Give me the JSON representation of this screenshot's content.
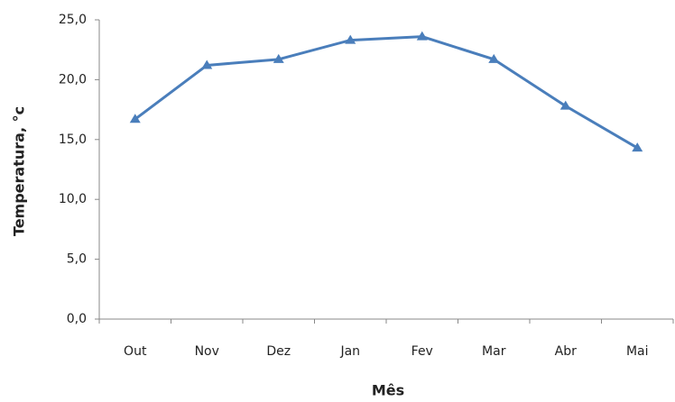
{
  "chart_data": {
    "type": "line",
    "x_label": "Mês",
    "y_label": "Temperatura, °c",
    "categories": [
      "Out",
      "Nov",
      "Dez",
      "Jan",
      "Fev",
      "Mar",
      "Abr",
      "Mai"
    ],
    "values": [
      16.7,
      21.2,
      21.7,
      23.3,
      23.6,
      21.7,
      17.8,
      14.3
    ],
    "color": "#4a7ebb",
    "ylim": [
      0,
      25
    ],
    "yticks": [
      {
        "value": 0,
        "label": "0,0"
      },
      {
        "value": 5,
        "label": "5,0"
      },
      {
        "value": 10,
        "label": "10,0"
      },
      {
        "value": 15,
        "label": "15,0"
      },
      {
        "value": 20,
        "label": "20,0"
      },
      {
        "value": 25,
        "label": "25,0"
      }
    ],
    "grid": false
  }
}
